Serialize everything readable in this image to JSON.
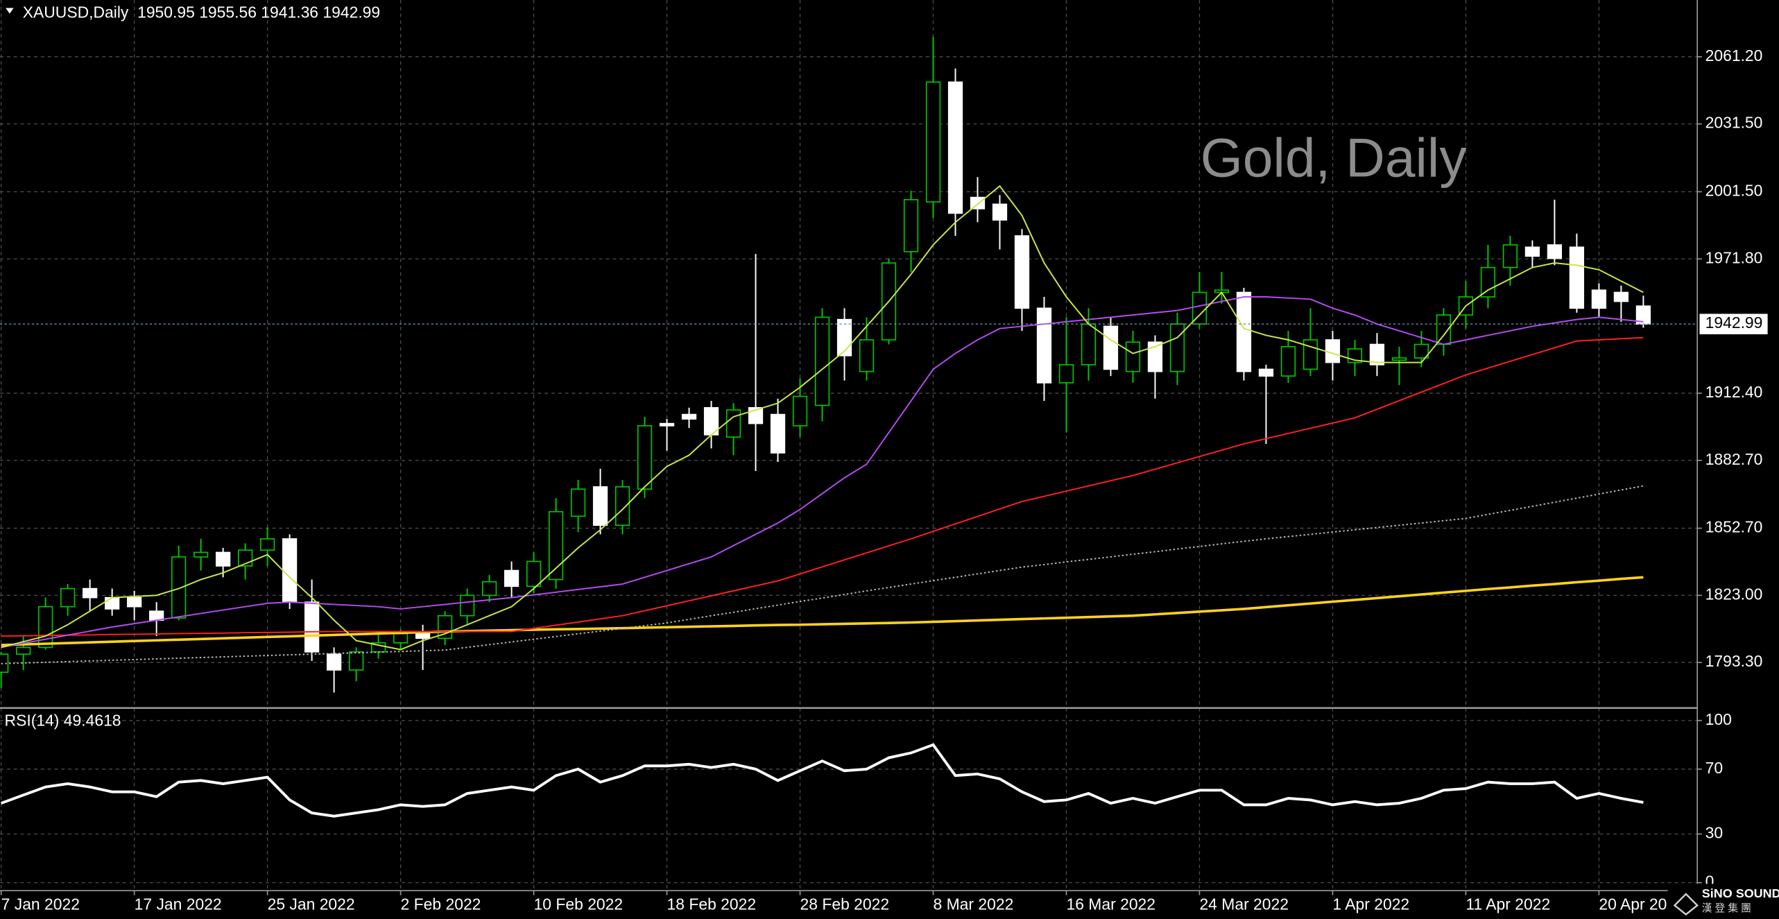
{
  "chart_data": [
    {
      "type": "candlestick",
      "title": "XAUUSD,Daily  1950.95 1955.56 1941.36 1942.99",
      "watermark": "Gold, Daily",
      "categories": [
        "7 Jan 2022",
        null,
        null,
        null,
        null,
        null,
        "17 Jan 2022",
        null,
        null,
        null,
        null,
        null,
        "25 Jan 2022",
        null,
        null,
        null,
        null,
        null,
        "2 Feb 2022",
        null,
        null,
        null,
        null,
        null,
        "10 Feb 2022",
        null,
        null,
        null,
        null,
        null,
        "18 Feb 2022",
        null,
        null,
        null,
        null,
        null,
        "28 Feb 2022",
        null,
        null,
        null,
        null,
        null,
        "8 Mar 2022",
        null,
        null,
        null,
        null,
        null,
        "16 Mar 2022",
        null,
        null,
        null,
        null,
        null,
        "24 Mar 2022",
        null,
        null,
        null,
        null,
        null,
        "1 Apr 2022",
        null,
        null,
        null,
        null,
        null,
        "11 Apr 2022",
        null,
        null,
        null,
        null,
        null,
        "20 Apr 2022",
        null,
        null
      ],
      "open": [
        1789,
        1797,
        1800,
        1818,
        1826,
        1822,
        1822,
        1816,
        1813,
        1840,
        1842,
        1836,
        1843,
        1848,
        1820,
        1797,
        1790,
        1798,
        1802,
        1807,
        1804,
        1814,
        1823,
        1834,
        1827,
        1830,
        1858,
        1871,
        1854,
        1870,
        1899,
        1903,
        1906,
        1893,
        1906,
        1903,
        1898,
        1907,
        1945,
        1922,
        1936,
        1975,
        1997,
        2050,
        1999,
        1996,
        1982,
        1950,
        1917,
        1925,
        1942,
        1922,
        1935,
        1922,
        1943,
        1957,
        1957,
        1923,
        1920,
        1923,
        1936,
        1926,
        1934,
        1927,
        1928,
        1934,
        1947,
        1955,
        1968,
        1977,
        1978,
        1977,
        1958,
        1957,
        1950.95
      ],
      "high": [
        1798,
        1805,
        1822,
        1828,
        1830,
        1826,
        1825,
        1820,
        1845,
        1848,
        1844,
        1846,
        1853,
        1850,
        1830,
        1800,
        1800,
        1807,
        1808,
        1810,
        1816,
        1826,
        1832,
        1838,
        1842,
        1866,
        1874,
        1879,
        1874,
        1902,
        1901,
        1906,
        1909,
        1908,
        1974,
        1910,
        1919,
        1950,
        1950,
        1946,
        1972,
        2002,
        2070,
        2056,
        2008,
        2000,
        1985,
        1955,
        1946,
        1950,
        1946,
        1940,
        1938,
        1948,
        1966,
        1966,
        1959,
        1925,
        1940,
        1950,
        1940,
        1936,
        1939,
        1933,
        1940,
        1950,
        1962,
        1978,
        1982,
        1980,
        1998,
        1983,
        1961,
        1960,
        1955.56
      ],
      "low": [
        1782,
        1790,
        1799,
        1814,
        1816,
        1814,
        1812,
        1805,
        1812,
        1834,
        1831,
        1830,
        1836,
        1817,
        1794,
        1780,
        1785,
        1795,
        1799,
        1790,
        1801,
        1810,
        1820,
        1822,
        1824,
        1826,
        1851,
        1850,
        1850,
        1866,
        1887,
        1897,
        1888,
        1885,
        1878,
        1882,
        1893,
        1900,
        1918,
        1918,
        1934,
        1966,
        1990,
        1982,
        1988,
        1976,
        1940,
        1909,
        1895,
        1918,
        1920,
        1917,
        1910,
        1916,
        1941,
        1952,
        1918,
        1890,
        1917,
        1920,
        1918,
        1920,
        1920,
        1916,
        1924,
        1929,
        1941,
        1950,
        1960,
        1968,
        1969,
        1948,
        1946,
        1944,
        1941.36
      ],
      "close": [
        1797,
        1800,
        1818,
        1826,
        1822,
        1817,
        1818,
        1812,
        1840,
        1842,
        1836,
        1843,
        1848,
        1820,
        1798,
        1790,
        1798,
        1802,
        1806,
        1804,
        1814,
        1823,
        1829,
        1827,
        1838,
        1860,
        1870,
        1854,
        1871,
        1898,
        1898,
        1901,
        1894,
        1905,
        1899,
        1886,
        1911,
        1946,
        1929,
        1936,
        1970,
        1998,
        2050,
        1992,
        1994,
        1989,
        1950,
        1917,
        1925,
        1943,
        1923,
        1935,
        1922,
        1943,
        1957,
        1958,
        1922,
        1920,
        1933,
        1936,
        1926,
        1932,
        1925,
        1928,
        1934,
        1947,
        1955,
        1968,
        1978,
        1973,
        1972,
        1950,
        1950,
        1953,
        1942.99
      ],
      "up_color": "#00c800",
      "down_color": "#ffffff",
      "ylim": [
        1774.2,
        2086.3
      ],
      "yticks": [
        {
          "value": 1793.3,
          "label": "1793.30"
        },
        {
          "value": 1823,
          "label": "1823.00"
        },
        {
          "value": 1852.7,
          "label": "1852.70"
        },
        {
          "value": 1882.7,
          "label": "1882.70"
        },
        {
          "value": 1912.4,
          "label": "1912.40"
        },
        {
          "value": 1971.8,
          "label": "1971.80"
        },
        {
          "value": 2001.5,
          "label": "2001.50"
        },
        {
          "value": 2031.5,
          "label": "2031.50"
        },
        {
          "value": 2061.2,
          "label": "2061.20"
        }
      ],
      "grid": true,
      "last_price": {
        "value": 1942.99,
        "label": "1942.99"
      },
      "lines": [
        {
          "color": "#ffd21f",
          "thick": true,
          "values": [
            1801,
            1801.3,
            1801.6,
            1801.9,
            1802.2,
            1802.5,
            1802.8,
            1803.1,
            1803.4,
            1803.7,
            1804,
            1804.3,
            1804.6,
            1804.9,
            1805.2,
            1805.5,
            1805.8,
            1806.1,
            1806.4,
            1806.7,
            1807,
            1807.2,
            1807.4,
            1807.6,
            1807.8,
            1808,
            1808.1,
            1808.3,
            1808.5,
            1808.7,
            1808.9,
            1809.1,
            1809.3,
            1809.5,
            1809.7,
            1809.9,
            1810,
            1810.2,
            1810.4,
            1810.6,
            1810.8,
            1811,
            1811.3,
            1811.6,
            1811.9,
            1812.2,
            1812.5,
            1812.8,
            1813.1,
            1813.4,
            1813.7,
            1814,
            1814.6,
            1815.2,
            1815.8,
            1816.4,
            1817,
            1817.8,
            1818.6,
            1819.4,
            1820.2,
            1821,
            1821.8,
            1822.6,
            1823.4,
            1824.2,
            1825,
            1825.8,
            1826.5,
            1827.3,
            1828,
            1828.8,
            1829.5,
            1830.3,
            1831
          ]
        },
        {
          "color": "#bbbbbb",
          "dotted": true,
          "values": [
            1792.8,
            1793.1,
            1793.4,
            1793.7,
            1794,
            1794.3,
            1794.6,
            1794.9,
            1795.2,
            1795.5,
            1795.8,
            1796.1,
            1796.4,
            1796.7,
            1797,
            1797.3,
            1797.6,
            1797.9,
            1798.2,
            1798.5,
            1798.8,
            1800,
            1801.2,
            1802.4,
            1803.6,
            1804.8,
            1806,
            1807.2,
            1808.4,
            1809.6,
            1810.8,
            1812.4,
            1814,
            1815.5,
            1817.1,
            1818.7,
            1820.3,
            1821.8,
            1823.4,
            1825,
            1826.5,
            1828,
            1829.5,
            1831,
            1832.5,
            1834,
            1835.5,
            1836.6,
            1837.8,
            1838.9,
            1840,
            1841.2,
            1842.3,
            1843.5,
            1844.6,
            1845.8,
            1846.9,
            1848,
            1849,
            1850,
            1851,
            1852,
            1853,
            1854,
            1855,
            1856,
            1857,
            1858.8,
            1860.6,
            1862.4,
            1864.2,
            1866,
            1867.8,
            1869.6,
            1871.4
          ]
        },
        {
          "color": "#ff2020",
          "values": [
            1805,
            1805.1,
            1805.3,
            1805.4,
            1805.5,
            1805.7,
            1805.8,
            1805.9,
            1806.1,
            1806.2,
            1806.3,
            1806.5,
            1806.6,
            1806.7,
            1806.9,
            1807,
            1807,
            1807,
            1807,
            1807,
            1807,
            1807,
            1807,
            1807,
            1808.4,
            1809.8,
            1811.2,
            1812.6,
            1814,
            1816.2,
            1818.4,
            1820.6,
            1822.8,
            1825,
            1827.2,
            1829.4,
            1832.5,
            1835.6,
            1838.7,
            1841.8,
            1844.9,
            1848,
            1851.3,
            1854.6,
            1857.9,
            1861.2,
            1864.5,
            1866.8,
            1869.1,
            1871.4,
            1873.7,
            1876,
            1878.8,
            1881.6,
            1884.4,
            1887.2,
            1890,
            1892.3,
            1894.6,
            1896.9,
            1899.2,
            1901.5,
            1905.3,
            1909.1,
            1912.9,
            1916.7,
            1920.5,
            1923.5,
            1926.5,
            1929.5,
            1932.5,
            1935.5,
            1936,
            1936.5,
            1937
          ]
        },
        {
          "color": "#b44cf0",
          "values": [
            1800,
            1801.8,
            1803.6,
            1805.4,
            1807.2,
            1809,
            1810.5,
            1812,
            1813.5,
            1815,
            1816.5,
            1818,
            1819.5,
            1820,
            1819.5,
            1819,
            1818.5,
            1818,
            1817,
            1818,
            1819,
            1820,
            1821,
            1822,
            1823.2,
            1824.4,
            1825.6,
            1826.8,
            1828,
            1831,
            1834,
            1837,
            1840,
            1845,
            1850,
            1855,
            1861,
            1868,
            1875,
            1881,
            1895,
            1909,
            1923,
            1930,
            1936,
            1941,
            1942,
            1943,
            1944,
            1945,
            1946,
            1947,
            1948,
            1949,
            1951,
            1953,
            1955,
            1955,
            1954.5,
            1954,
            1950,
            1947,
            1943,
            1940,
            1937,
            1934,
            1936,
            1938,
            1940,
            1942,
            1943.5,
            1945,
            1946,
            1945,
            1944
          ]
        },
        {
          "color": "#c6e84a",
          "values": [
            1800,
            1802.5,
            1805,
            1810,
            1816,
            1822,
            1822.5,
            1823,
            1826,
            1830,
            1833,
            1837,
            1841,
            1831,
            1822,
            1812,
            1803,
            1801,
            1799,
            1803,
            1806,
            1810,
            1814,
            1818,
            1826,
            1835,
            1844,
            1852,
            1861,
            1871,
            1880,
            1885,
            1894,
            1902,
            1905,
            1908,
            1915,
            1923,
            1931,
            1942,
            1953,
            1965,
            1978,
            1988,
            1996,
            2004,
            1991,
            1970,
            1955,
            1943,
            1936,
            1930,
            1933,
            1937,
            1947,
            1957,
            1941,
            1938,
            1936,
            1933,
            1930,
            1927,
            1926,
            1926,
            1926,
            1938,
            1951,
            1958,
            1963,
            1968,
            1970,
            1969,
            1967,
            1962,
            1957
          ]
        }
      ]
    },
    {
      "type": "line",
      "title": "RSI(14) 49.4618",
      "color": "#ffffff",
      "values": [
        49,
        54,
        59,
        61,
        59,
        56,
        56,
        53,
        62,
        63,
        61,
        63,
        65,
        51,
        43,
        41,
        43,
        45,
        48,
        47,
        48,
        55,
        57,
        59,
        57,
        66,
        70,
        62,
        66,
        72,
        72,
        73,
        71,
        73,
        70,
        63,
        69,
        75,
        69,
        70,
        77,
        80,
        85,
        66,
        67,
        64,
        56,
        50,
        51,
        55,
        49,
        52,
        49,
        53,
        57,
        57,
        48,
        48,
        52,
        51,
        48,
        50,
        48,
        49,
        52,
        57,
        58,
        62,
        61,
        61,
        62,
        52,
        55,
        52,
        49.4618
      ],
      "ylim": [
        -4.9,
        106.3
      ],
      "yticks": [
        0,
        30,
        70,
        100
      ],
      "grid": true
    }
  ],
  "logo": {
    "name": "SiNO SOUND",
    "subtitle": "漢 登 集 團"
  }
}
